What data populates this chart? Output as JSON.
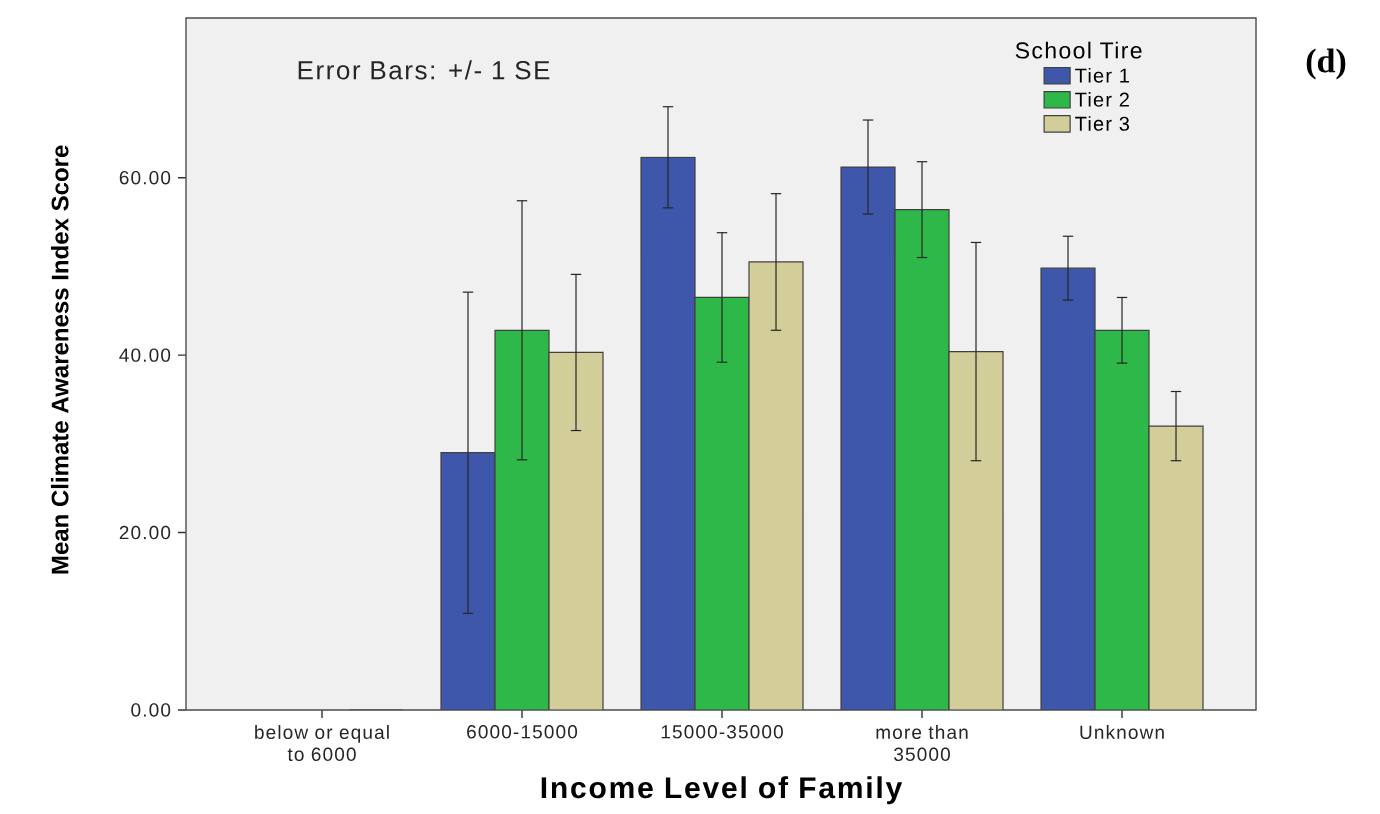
{
  "chart_data": {
    "type": "bar",
    "xlabel": "Income Level of Family",
    "ylabel": "Mean Climate Awareness Index Score",
    "legend_title": "School Tire",
    "annotations": [
      "Error Bars: +/- 1 SE",
      "(d)"
    ],
    "categories": [
      "below or equal to 6000",
      "6000-15000",
      "15000-35000",
      "more than 35000",
      "Unknown"
    ],
    "series": [
      {
        "name": "Tier 1",
        "color": "#3f57ab",
        "values": [
          null,
          29.0,
          62.3,
          61.2,
          49.8
        ],
        "errors": [
          null,
          18.1,
          5.7,
          5.3,
          3.6
        ]
      },
      {
        "name": "Tier 2",
        "color": "#2fb84a",
        "values": [
          null,
          42.8,
          46.5,
          56.4,
          42.8
        ],
        "errors": [
          null,
          14.6,
          7.3,
          5.4,
          3.7
        ]
      },
      {
        "name": "Tier 3",
        "color": "#d3cd99",
        "values": [
          0,
          40.3,
          50.5,
          40.4,
          32.0
        ],
        "errors": [
          null,
          8.8,
          7.7,
          12.3,
          3.9
        ]
      }
    ],
    "ylim": [
      0,
      78
    ],
    "yticks": [
      {
        "value": 0,
        "label": "0.00"
      },
      {
        "value": 20,
        "label": "20.00"
      },
      {
        "value": 40,
        "label": "40.00"
      },
      {
        "value": 60,
        "label": "60.00"
      }
    ],
    "legend": "top right"
  }
}
